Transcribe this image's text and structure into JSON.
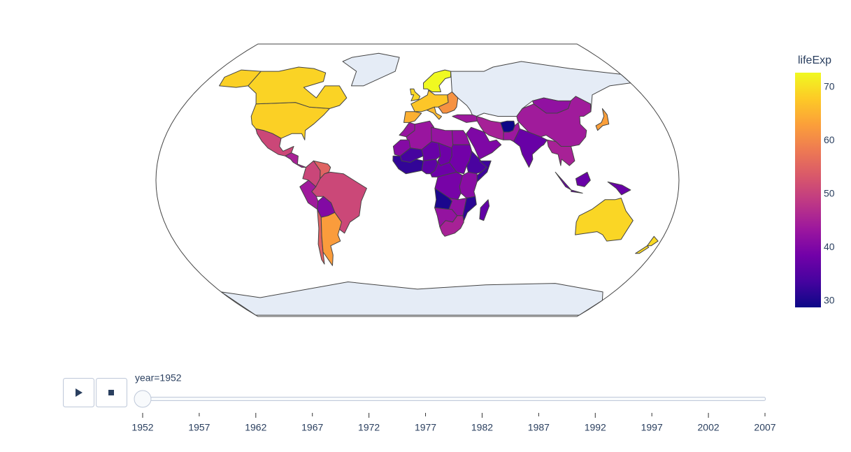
{
  "chart_data": {
    "type": "choropleth",
    "colorbar_title": "lifeExp",
    "values": [
      68.4,
      68.8,
      50.8,
      45,
      50.6,
      55.1,
      50.9,
      43.9,
      40.4,
      54.7,
      62.5,
      64.9,
      67.4,
      65.9,
      69.2,
      72.7,
      61.3,
      43.6,
      39.9,
      44.9,
      28.8,
      43.4,
      37.4,
      44,
      42.2,
      45,
      63,
      37.5,
      69.1,
      69.4,
      43.1,
      42.9,
      42.7,
      41.9,
      33.7,
      40.6,
      37.4,
      38.1,
      38.6,
      32,
      36.3,
      38,
      34.1,
      33,
      39.1,
      41.2,
      30,
      31.3,
      42,
      42.5,
      45,
      36.7
    ],
    "zlim": [
      28.8,
      72.7
    ],
    "zticks": [
      30,
      40,
      50,
      60,
      70
    ],
    "colorscale": [
      "#0d0887",
      "#46039f",
      "#7201a8",
      "#9c179e",
      "#bd3786",
      "#d8576b",
      "#ed7953",
      "#fb9f3a",
      "#fdca26",
      "#f0f921"
    ],
    "missing_color": "#e5ecf6",
    "slider": {
      "current_label": "year=1952",
      "active": 0,
      "steps": [
        1952,
        1957,
        1962,
        1967,
        1972,
        1977,
        1982,
        1987,
        1992,
        1997,
        2002,
        2007
      ]
    }
  }
}
